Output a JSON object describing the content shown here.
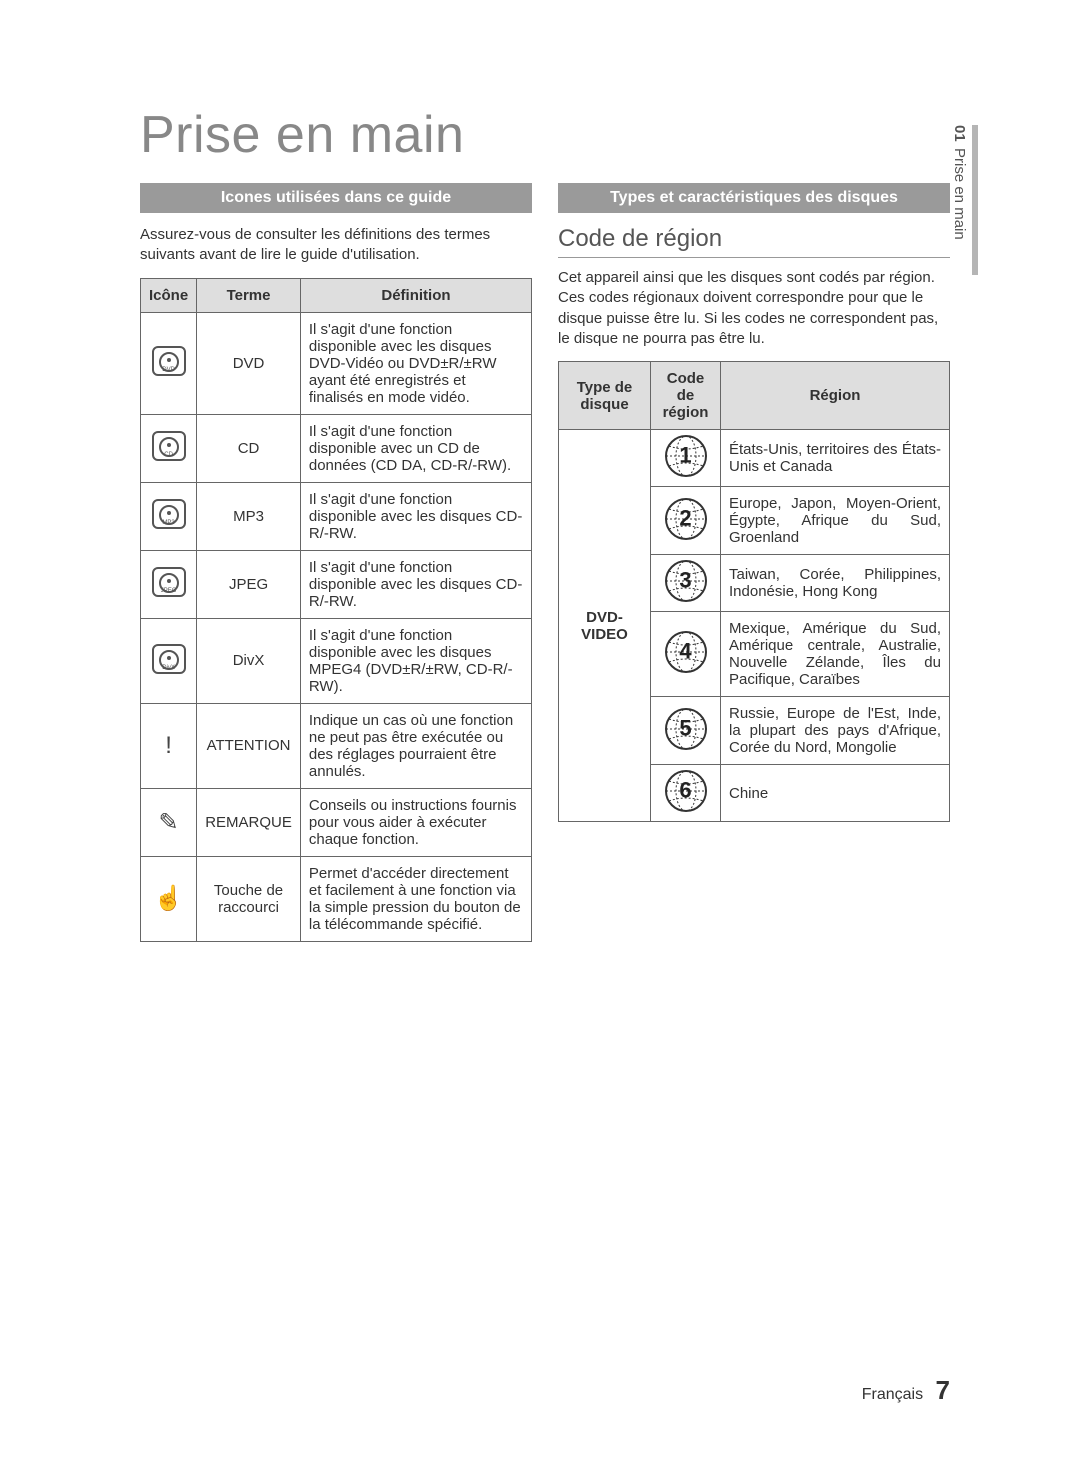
{
  "side": {
    "number": "01",
    "label": "Prise en main"
  },
  "chapter_title": "Prise en main",
  "left": {
    "section_bar": "Icones utilisées dans ce guide",
    "intro": "Assurez-vous de consulter les définitions des termes suivants avant de lire le guide d'utilisation.",
    "headers": {
      "icon": "Icône",
      "term": "Terme",
      "def": "Définition"
    },
    "rows": [
      {
        "icon_type": "disc",
        "icon_label": "DVD",
        "term": "DVD",
        "def": "Il s'agit d'une fonction disponible avec les disques DVD-Vidéo ou DVD±R/±RW ayant été enregistrés et finalisés en mode vidéo."
      },
      {
        "icon_type": "disc",
        "icon_label": "CD",
        "term": "CD",
        "def": "Il s'agit d'une fonction disponible avec un CD de données (CD DA, CD-R/-RW)."
      },
      {
        "icon_type": "disc",
        "icon_label": "MP3",
        "term": "MP3",
        "def": "Il s'agit d'une fonction disponible avec les disques CD-R/-RW."
      },
      {
        "icon_type": "disc",
        "icon_label": "JPEG",
        "term": "JPEG",
        "def": "Il s'agit d'une fonction disponible avec les disques CD-R/-RW."
      },
      {
        "icon_type": "disc",
        "icon_label": "DivX",
        "term": "DivX",
        "def": "Il s'agit d'une fonction disponible avec les disques MPEG4 (DVD±R/±RW, CD-R/-RW)."
      },
      {
        "icon_type": "glyph",
        "glyph": "!",
        "term": "ATTENTION",
        "def": "Indique un cas où une fonction ne peut pas être exécutée ou des réglages pourraient être annulés."
      },
      {
        "icon_type": "glyph",
        "glyph": "✎",
        "term": "REMARQUE",
        "def": "Conseils ou instructions fournis pour vous aider à exécuter chaque fonction."
      },
      {
        "icon_type": "glyph",
        "glyph": "☝",
        "term": "Touche de raccourci",
        "def": "Permet d'accéder directement et facilement à une fonction via la simple pression du bouton de la télécommande spécifié."
      }
    ]
  },
  "right": {
    "section_bar": "Types et caractéristiques des disques",
    "subheading": "Code de région",
    "intro": "Cet appareil ainsi que les disques sont codés par région. Ces codes régionaux doivent correspondre pour que le disque puisse être lu. Si les codes ne correspondent pas, le disque ne pourra pas être lu.",
    "headers": {
      "type": "Type de disque",
      "code": "Code de région",
      "region": "Région"
    },
    "disc_type": "DVD-VIDEO",
    "rows": [
      {
        "code": "1",
        "region": "États-Unis, territoires des États-Unis et Canada"
      },
      {
        "code": "2",
        "region": "Europe, Japon, Moyen-Orient, Égypte, Afrique du Sud, Groenland"
      },
      {
        "code": "3",
        "region": "Taiwan, Corée, Philippines, Indonésie, Hong Kong"
      },
      {
        "code": "4",
        "region": "Mexique, Amérique du Sud, Amérique centrale, Australie, Nouvelle Zélande, Îles du Pacifique, Caraïbes"
      },
      {
        "code": "5",
        "region": "Russie, Europe de l'Est, Inde, la plupart des pays d'Afrique, Corée du Nord, Mongolie"
      },
      {
        "code": "6",
        "region": "Chine"
      }
    ]
  },
  "footer": {
    "lang": "Français",
    "page": "7"
  },
  "colors": {
    "section_bar_bg": "#9a9a9a",
    "section_bar_text": "#ffffff",
    "table_header_bg": "#dedede",
    "border": "#666666",
    "chapter_title": "#888888"
  }
}
